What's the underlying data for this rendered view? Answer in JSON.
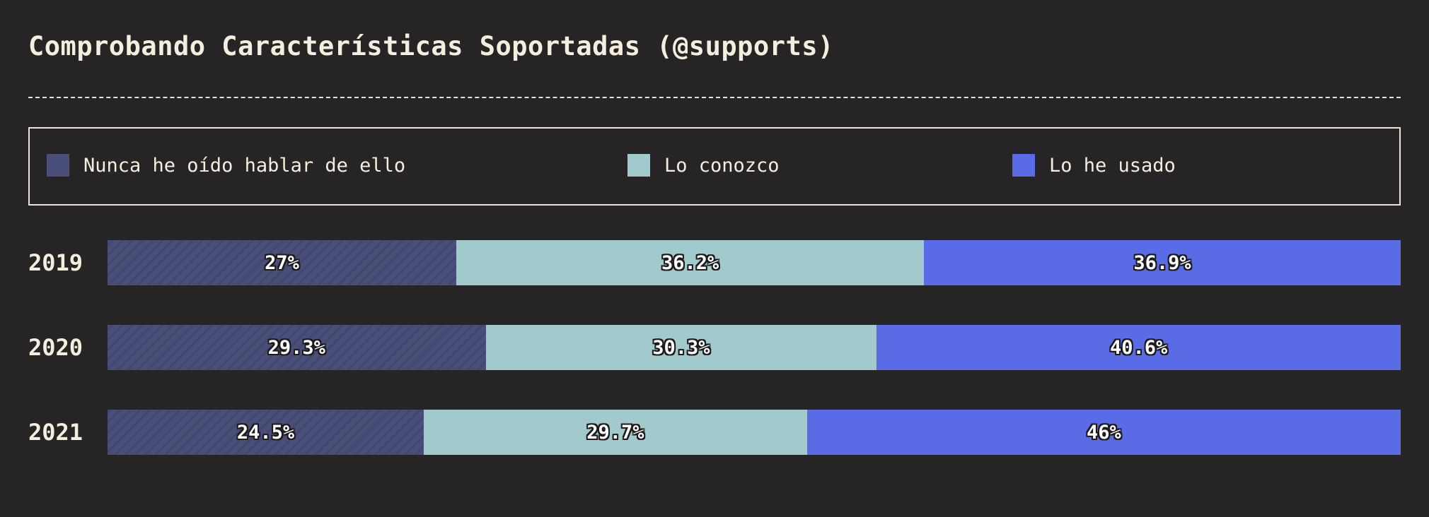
{
  "chart_data": {
    "type": "bar",
    "orientation": "horizontal",
    "stacked": true,
    "normalized": true,
    "title": "Comprobando Características Soportadas (@supports)",
    "categories": [
      "2019",
      "2020",
      "2021"
    ],
    "series": [
      {
        "name": "Nunca he oído hablar de ello",
        "color": "#4a4f7a",
        "values": [
          27,
          29.3,
          24.5
        ],
        "labels": [
          "27%",
          "29.3%",
          "24.5%"
        ]
      },
      {
        "name": "Lo conozco",
        "color": "#a2c9cb",
        "values": [
          36.2,
          30.3,
          29.7
        ],
        "labels": [
          "36.2%",
          "30.3%",
          "29.7%"
        ]
      },
      {
        "name": "Lo he usado",
        "color": "#5a6be6",
        "values": [
          36.9,
          40.6,
          46
        ],
        "labels": [
          "36.9%",
          "40.6%",
          "46%"
        ]
      }
    ],
    "legend_position": "top",
    "grid": false
  }
}
